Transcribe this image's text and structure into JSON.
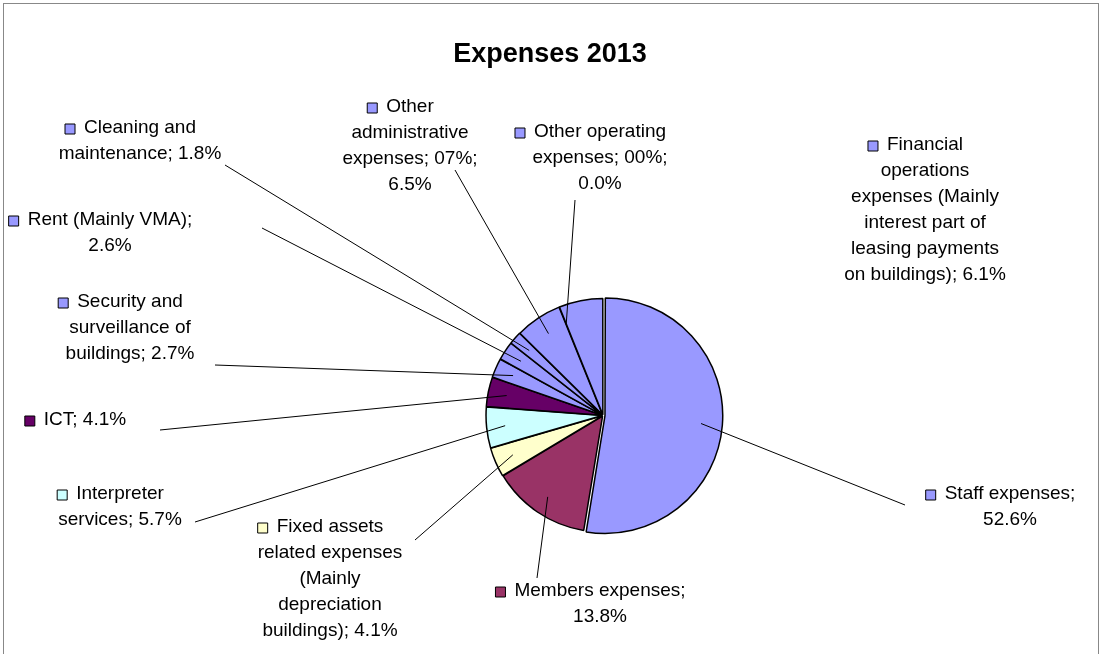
{
  "chart_data": {
    "type": "pie",
    "title": "Expenses 2013",
    "categories": [
      "Staff expenses; 52.6%",
      "Members expenses; 13.8%",
      "Fixed assets related expenses (Mainly depreciation buildings); 4.1%",
      "Interpreter services; 5.7%",
      "ICT; 4.1%",
      "Security and surveillance of buildings; 2.7%",
      "Rent (Mainly VMA); 2.6%",
      "Cleaning and maintenance; 1.8%",
      "Other administrative expenses; 07%; 6.5%",
      "Other operating expenses; 00%; 0.0%",
      "Financial operations expenses (Mainly interest part of leasing payments on buildings); 6.1%"
    ],
    "values": [
      52.6,
      13.8,
      4.1,
      5.7,
      4.1,
      2.7,
      2.6,
      1.8,
      6.5,
      0.0,
      6.1
    ],
    "colors": [
      "#9999ff",
      "#993366",
      "#ffffcc",
      "#ccffff",
      "#660066",
      "#9999ff",
      "#9999ff",
      "#9999ff",
      "#9999ff",
      "#9999ff",
      "#9999ff"
    ],
    "legend": "left"
  }
}
